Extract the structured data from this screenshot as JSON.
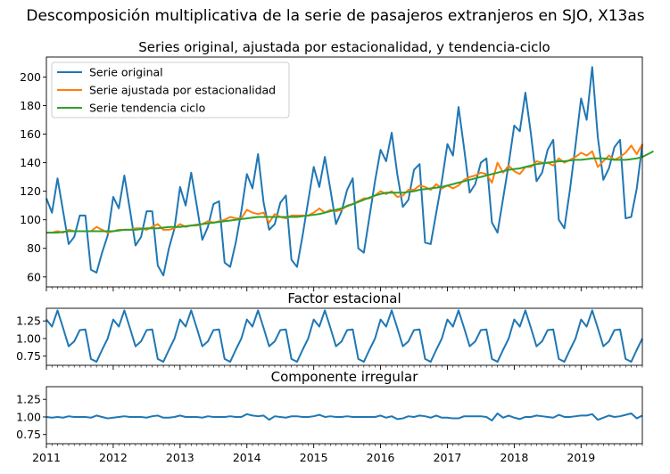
{
  "figure": {
    "suptitle": "Descomposición multiplicativa de la serie de pasajeros extranjeros en SJO, X13as",
    "colors": {
      "original": "#1f77b4",
      "ajustada": "#ff7f0e",
      "tendencia": "#2ca02c"
    }
  },
  "chart_data": [
    {
      "type": "line",
      "title": "Series original, ajustada por estacionalidad, y tendencia-ciclo",
      "xlabel": "",
      "ylabel": "",
      "x_start": "2011-01",
      "x_frequency": "monthly",
      "xlim": [
        "2011-01",
        "2019-12"
      ],
      "ylim": [
        53,
        214
      ],
      "yticks": [
        60,
        80,
        100,
        120,
        140,
        160,
        180,
        200
      ],
      "xtick_labels": [
        "2011",
        "2012",
        "2013",
        "2014",
        "2015",
        "2016",
        "2017",
        "2018",
        "2019"
      ],
      "grid": false,
      "legend_position": "top-left",
      "series": [
        {
          "name": "Serie original",
          "values": [
            115,
            105,
            129,
            106,
            83,
            88,
            103,
            103,
            65,
            63,
            77,
            89,
            116,
            108,
            131,
            107,
            82,
            88,
            106,
            106,
            68,
            61,
            80,
            94,
            123,
            110,
            133,
            110,
            86,
            95,
            111,
            113,
            70,
            67,
            84,
            106,
            132,
            122,
            146,
            112,
            93,
            97,
            112,
            117,
            72,
            67,
            89,
            113,
            137,
            123,
            144,
            121,
            97,
            106,
            121,
            129,
            80,
            77,
            102,
            127,
            149,
            141,
            161,
            132,
            109,
            114,
            135,
            139,
            84,
            83,
            105,
            127,
            153,
            145,
            179,
            150,
            119,
            125,
            140,
            143,
            98,
            91,
            115,
            139,
            166,
            162,
            189,
            160,
            127,
            133,
            149,
            156,
            100,
            94,
            121,
            152,
            185,
            170,
            207,
            158,
            128,
            136,
            151,
            156,
            101,
            102,
            122,
            153
          ]
        },
        {
          "name": "Serie ajustada por estacionalidad",
          "values": [
            91,
            91,
            92,
            91,
            93,
            92,
            92,
            92,
            92,
            95,
            93,
            91,
            92,
            93,
            93,
            93,
            94,
            94,
            93,
            95,
            97,
            93,
            93,
            94,
            97,
            95,
            96,
            96,
            97,
            99,
            98,
            99,
            100,
            102,
            101,
            101,
            107,
            105,
            104,
            105,
            98,
            104,
            102,
            101,
            103,
            103,
            103,
            103,
            105,
            108,
            105,
            107,
            106,
            107,
            110,
            111,
            113,
            115,
            115,
            117,
            120,
            118,
            120,
            116,
            117,
            121,
            121,
            124,
            123,
            121,
            125,
            122,
            124,
            122,
            124,
            128,
            130,
            131,
            133,
            132,
            126,
            140,
            133,
            138,
            134,
            132,
            137,
            137,
            141,
            140,
            140,
            138,
            143,
            140,
            142,
            144,
            147,
            145,
            148,
            137,
            141,
            145,
            142,
            144,
            147,
            152,
            146,
            153
          ]
        },
        {
          "name": "Serie tendencia ciclo",
          "values": [
            91,
            91,
            91,
            91.5,
            92,
            92,
            92,
            92,
            92,
            92,
            92,
            92,
            92,
            92.5,
            93,
            93,
            93,
            93.5,
            94,
            94,
            94,
            94.5,
            95,
            95,
            95,
            95.5,
            96,
            96.5,
            97,
            97.5,
            98,
            98.5,
            99,
            99.5,
            100,
            100.5,
            101,
            101.5,
            102,
            102,
            102,
            102,
            102,
            102,
            102,
            102,
            102.5,
            103,
            103.5,
            104,
            105,
            106,
            107,
            108,
            109.5,
            111,
            112.5,
            114,
            115.5,
            117,
            118,
            119,
            119,
            119,
            119,
            119.5,
            120,
            121,
            121.5,
            122,
            122.5,
            123,
            124,
            125,
            126,
            127,
            128,
            129,
            130,
            131,
            132,
            133,
            134,
            135,
            135.5,
            136,
            137,
            138,
            139,
            139.5,
            140,
            140.5,
            141,
            141,
            141.5,
            142,
            142,
            142.5,
            143,
            143,
            143,
            142.5,
            142,
            142,
            142,
            142.5,
            143,
            144,
            146,
            148
          ]
        }
      ]
    },
    {
      "type": "line",
      "title": "Factor estacional",
      "x_start": "2011-01",
      "x_frequency": "monthly",
      "ylim": [
        0.62,
        1.43
      ],
      "yticks": [
        0.75,
        1.0,
        1.25
      ],
      "ytick_labels": [
        "0.75",
        "1.00",
        "1.25"
      ],
      "series": [
        {
          "name": "",
          "values": [
            1.27,
            1.17,
            1.4,
            1.15,
            0.89,
            0.96,
            1.12,
            1.13,
            0.71,
            0.67,
            0.84,
            1.0,
            1.27,
            1.17,
            1.4,
            1.15,
            0.89,
            0.96,
            1.12,
            1.13,
            0.71,
            0.67,
            0.84,
            1.0,
            1.27,
            1.17,
            1.4,
            1.15,
            0.89,
            0.96,
            1.12,
            1.13,
            0.71,
            0.67,
            0.84,
            1.0,
            1.27,
            1.17,
            1.4,
            1.15,
            0.89,
            0.96,
            1.12,
            1.13,
            0.71,
            0.67,
            0.84,
            1.0,
            1.27,
            1.17,
            1.4,
            1.15,
            0.89,
            0.96,
            1.12,
            1.13,
            0.71,
            0.67,
            0.84,
            1.0,
            1.27,
            1.17,
            1.4,
            1.15,
            0.89,
            0.96,
            1.12,
            1.13,
            0.71,
            0.67,
            0.84,
            1.0,
            1.27,
            1.17,
            1.4,
            1.15,
            0.89,
            0.96,
            1.12,
            1.13,
            0.71,
            0.67,
            0.84,
            1.0,
            1.27,
            1.17,
            1.4,
            1.15,
            0.89,
            0.96,
            1.12,
            1.13,
            0.71,
            0.67,
            0.84,
            1.0,
            1.27,
            1.17,
            1.4,
            1.15,
            0.89,
            0.96,
            1.12,
            1.13,
            0.71,
            0.67,
            0.84,
            1.0
          ]
        }
      ]
    },
    {
      "type": "line",
      "title": "Componente irregular",
      "x_start": "2011-01",
      "x_frequency": "monthly",
      "ylim": [
        0.62,
        1.43
      ],
      "yticks": [
        0.75,
        1.0,
        1.25
      ],
      "ytick_labels": [
        "0.75",
        "1.00",
        "1.25"
      ],
      "series": [
        {
          "name": "",
          "values": [
            1.0,
            0.99,
            1.0,
            0.99,
            1.01,
            1.0,
            1.0,
            1.0,
            0.99,
            1.02,
            1.0,
            0.98,
            0.99,
            1.0,
            1.01,
            1.0,
            1.0,
            1.0,
            0.99,
            1.01,
            1.02,
            0.99,
            0.99,
            1.0,
            1.02,
            1.0,
            1.0,
            1.0,
            0.99,
            1.01,
            1.0,
            1.0,
            1.0,
            1.01,
            1.0,
            1.0,
            1.04,
            1.02,
            1.01,
            1.02,
            0.96,
            1.01,
            1.0,
            0.99,
            1.01,
            1.01,
            1.0,
            1.0,
            1.01,
            1.03,
            1.0,
            1.01,
            1.0,
            1.0,
            1.01,
            1.0,
            1.0,
            1.0,
            1.0,
            1.0,
            1.02,
            0.99,
            1.01,
            0.97,
            0.98,
            1.01,
            1.0,
            1.02,
            1.01,
            0.99,
            1.02,
            0.99,
            0.99,
            0.98,
            0.98,
            1.01,
            1.01,
            1.01,
            1.01,
            1.0,
            0.95,
            1.05,
            0.99,
            1.02,
            0.99,
            0.97,
            1.0,
            1.0,
            1.02,
            1.01,
            1.0,
            0.99,
            1.03,
            1.0,
            1.0,
            1.01,
            1.02,
            1.02,
            1.04,
            0.96,
            0.99,
            1.02,
            1.0,
            1.01,
            1.03,
            1.05,
            0.98,
            1.02
          ]
        }
      ]
    }
  ]
}
